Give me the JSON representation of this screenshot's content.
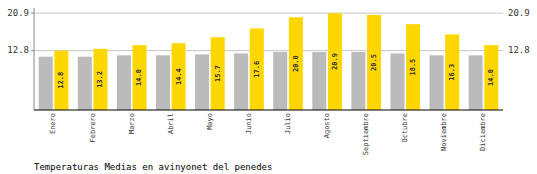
{
  "chart_data": {
    "type": "bar",
    "title": "Temperaturas Medias en avinyonet del penedes",
    "categories": [
      "Enero",
      "Febrero",
      "Marzo",
      "Abril",
      "Mayo",
      "Junio",
      "Julio",
      "Agosto",
      "Septiembre",
      "Octubre",
      "Noviembre",
      "Diciembre"
    ],
    "series": [
      {
        "color": "#BBBBBB",
        "values": [
          11.5,
          11.5,
          11.8,
          11.8,
          12.0,
          12.2,
          12.5,
          12.5,
          12.5,
          12.2,
          11.8,
          11.8
        ]
      },
      {
        "color": "#FFD700",
        "values": [
          12.8,
          13.2,
          14.0,
          14.4,
          15.7,
          17.6,
          20.0,
          20.9,
          20.5,
          18.5,
          16.3,
          14.0
        ],
        "data_labels": true,
        "value_labels": [
          "12.8",
          "13.2",
          "14.0",
          "14.4",
          "15.7",
          "17.6",
          "20.0",
          "20.9",
          "20.5",
          "18.5",
          "16.3",
          "14.0"
        ]
      }
    ],
    "ylim": [
      0,
      22.0
    ],
    "yticks": [
      12.8,
      20.9
    ],
    "grid": true
  }
}
